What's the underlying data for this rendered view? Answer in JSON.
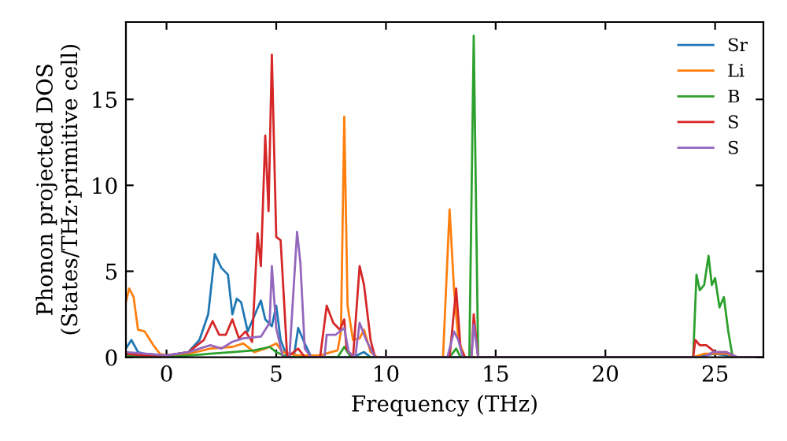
{
  "chart_data": {
    "type": "line",
    "xlabel": "Frequency (THz)",
    "ylabel": "Phonon projected DOS\n(States/THz·primitive cell)",
    "xlim": [
      -1.85,
      27.2
    ],
    "ylim": [
      0,
      19.5
    ],
    "xticks": [
      0,
      5,
      10,
      15,
      20,
      25
    ],
    "yticks": [
      0,
      5,
      10,
      15
    ],
    "grid": false,
    "legend": "top right",
    "series": [
      {
        "name": "Sr",
        "color": "#1f77b4",
        "x": [
          -1.85,
          -1.6,
          -1.3,
          -1,
          0,
          1,
          1.5,
          1.9,
          2.2,
          2.5,
          2.8,
          3.0,
          3.2,
          3.4,
          3.7,
          4.0,
          4.3,
          4.5,
          4.8,
          5.0,
          5.2,
          5.5,
          5.8,
          6.0,
          6.3,
          6.6,
          8.5,
          9,
          9.3,
          24,
          25,
          26,
          27.2
        ],
        "values": [
          0.5,
          1.0,
          0.3,
          0.2,
          0.1,
          0.3,
          1,
          2.5,
          6.0,
          5.2,
          4.8,
          2.5,
          3.4,
          3.2,
          1.5,
          2.4,
          3.3,
          2.2,
          1.8,
          3.0,
          1.0,
          0,
          0,
          1.7,
          0.8,
          0,
          0,
          0.3,
          0,
          0,
          0.2,
          0,
          0
        ]
      },
      {
        "name": "Li",
        "color": "#ff7f0e",
        "x": [
          -1.85,
          -1.7,
          -1.5,
          -1.3,
          -1,
          -0.6,
          -0.3,
          0,
          1,
          2,
          3,
          3.5,
          4,
          4.5,
          5,
          5.3,
          6,
          7,
          7.5,
          7.8,
          7.95,
          8.1,
          8.25,
          8.5,
          8.8,
          9.0,
          9.3,
          9.6,
          12.6,
          12.9,
          13.1,
          13.3,
          13.6,
          24,
          24.5,
          25.5,
          26,
          27.2
        ],
        "values": [
          3.2,
          4.0,
          3.5,
          1.6,
          1.5,
          0.7,
          0.2,
          0.1,
          0.2,
          0.5,
          0.6,
          0.8,
          0.3,
          0.5,
          0.8,
          0.3,
          0.1,
          0.1,
          0.3,
          0.4,
          1.5,
          14,
          3,
          1,
          1.1,
          1.6,
          0.3,
          0,
          0,
          8.6,
          4,
          1,
          0,
          0,
          0.2,
          0.2,
          0,
          0
        ]
      },
      {
        "name": "B",
        "color": "#2ca02c",
        "x": [
          -1.85,
          0,
          2,
          3,
          4,
          4.7,
          5,
          5.5,
          7.8,
          8.1,
          8.4,
          12.9,
          13.2,
          13.4,
          13.8,
          14.0,
          14.2,
          24,
          24.15,
          24.3,
          24.5,
          24.7,
          24.85,
          25,
          25.2,
          25.4,
          25.6,
          25.8,
          27.2
        ],
        "values": [
          0.1,
          0,
          0.2,
          0.3,
          0.4,
          0.6,
          0.3,
          0,
          0,
          0.6,
          0,
          0,
          0.5,
          0,
          0,
          18.7,
          0,
          0,
          4.8,
          3.9,
          4.2,
          5.9,
          4.2,
          4.6,
          2.9,
          3.5,
          1.5,
          0,
          0
        ]
      },
      {
        "name": "S",
        "color": "#d62728",
        "x": [
          -1.85,
          -1,
          0,
          1,
          1.7,
          2.1,
          2.4,
          2.7,
          3.0,
          3.3,
          3.6,
          3.9,
          4.15,
          4.3,
          4.5,
          4.65,
          4.8,
          5.0,
          5.2,
          5.5,
          6.0,
          6.3,
          7.0,
          7.3,
          7.6,
          7.9,
          8.1,
          8.2,
          8.5,
          8.8,
          9.0,
          9.3,
          9.5,
          12.9,
          13.2,
          13.4,
          13.6,
          13.9,
          14.0,
          14.2,
          24,
          24.1,
          24.3,
          24.6,
          25,
          25.5,
          26,
          27.2
        ],
        "values": [
          0.2,
          0.1,
          0.1,
          0.3,
          1.0,
          2.1,
          1.3,
          1.3,
          2.2,
          1.1,
          1.5,
          0.9,
          7.2,
          5.3,
          12.9,
          8.5,
          17.6,
          7.0,
          6.8,
          0,
          0.5,
          0,
          0,
          3.0,
          2.0,
          1.6,
          2.2,
          0.5,
          0,
          5.3,
          4.2,
          1.0,
          0,
          0,
          4.0,
          0.5,
          0,
          0,
          2.5,
          0,
          0,
          1.0,
          0.7,
          0.7,
          0.3,
          0.3,
          0,
          0
        ]
      },
      {
        "name": "S",
        "color": "#9467bd",
        "x": [
          -1.85,
          0,
          1,
          2,
          2.5,
          3,
          3.5,
          4.3,
          4.7,
          4.8,
          5.0,
          5.3,
          5.6,
          5.95,
          6.1,
          6.3,
          6.6,
          7.2,
          7.3,
          7.7,
          8.1,
          8.3,
          8.6,
          8.8,
          9.1,
          9.5,
          12.8,
          13.1,
          13.3,
          13.5,
          13.9,
          14.0,
          14.2,
          24.5,
          24.9,
          25.5,
          26,
          27.2
        ],
        "values": [
          0.3,
          0.1,
          0.3,
          0.7,
          0.5,
          0.9,
          1.1,
          1.2,
          2.0,
          5.3,
          1.7,
          0,
          0,
          7.3,
          5.5,
          0.5,
          0,
          0,
          1.3,
          1.3,
          1.7,
          0.3,
          0,
          2.0,
          1.0,
          0,
          0,
          1.5,
          1.0,
          0,
          0,
          1.9,
          0,
          0,
          0.3,
          0.3,
          0,
          0
        ]
      }
    ]
  }
}
